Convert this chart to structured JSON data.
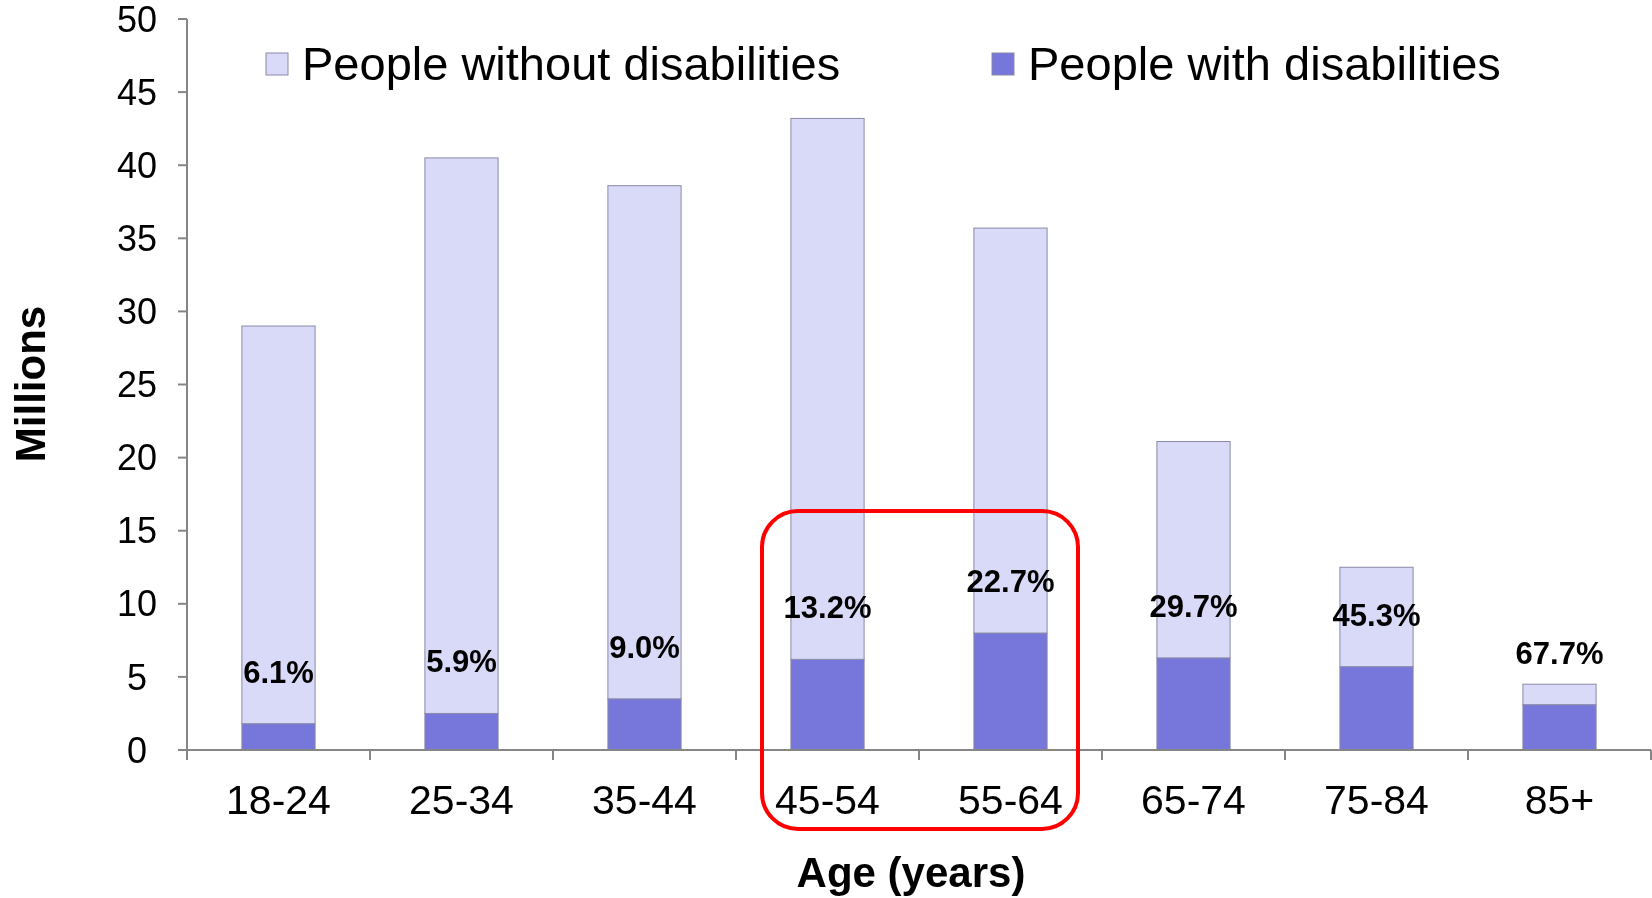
{
  "chart_data": {
    "type": "bar",
    "xlabel": "Age (years)",
    "ylabel": "Millions",
    "categories": [
      "18-24",
      "25-34",
      "35-44",
      "45-54",
      "55-64",
      "65-74",
      "75-84",
      "85+"
    ],
    "stacked": true,
    "series": [
      {
        "name": "People with disabilities",
        "color": "#7676db",
        "values": [
          1.8,
          2.5,
          3.5,
          6.2,
          8.0,
          6.3,
          5.7,
          3.1
        ]
      },
      {
        "name": "People without disabilities",
        "color": "#d9d9f8",
        "values": [
          27.2,
          38.0,
          35.1,
          37.0,
          27.7,
          14.8,
          6.8,
          1.4
        ]
      }
    ],
    "ylim": [
      0,
      50
    ],
    "yticks": [
      0,
      5,
      10,
      15,
      20,
      25,
      30,
      35,
      40,
      45,
      50
    ],
    "legend": "top",
    "annotations": [
      "6.1%",
      "5.9%",
      "9.0%",
      "13.2%",
      "22.7%",
      "29.7%",
      "45.3%",
      "67.7%"
    ]
  }
}
